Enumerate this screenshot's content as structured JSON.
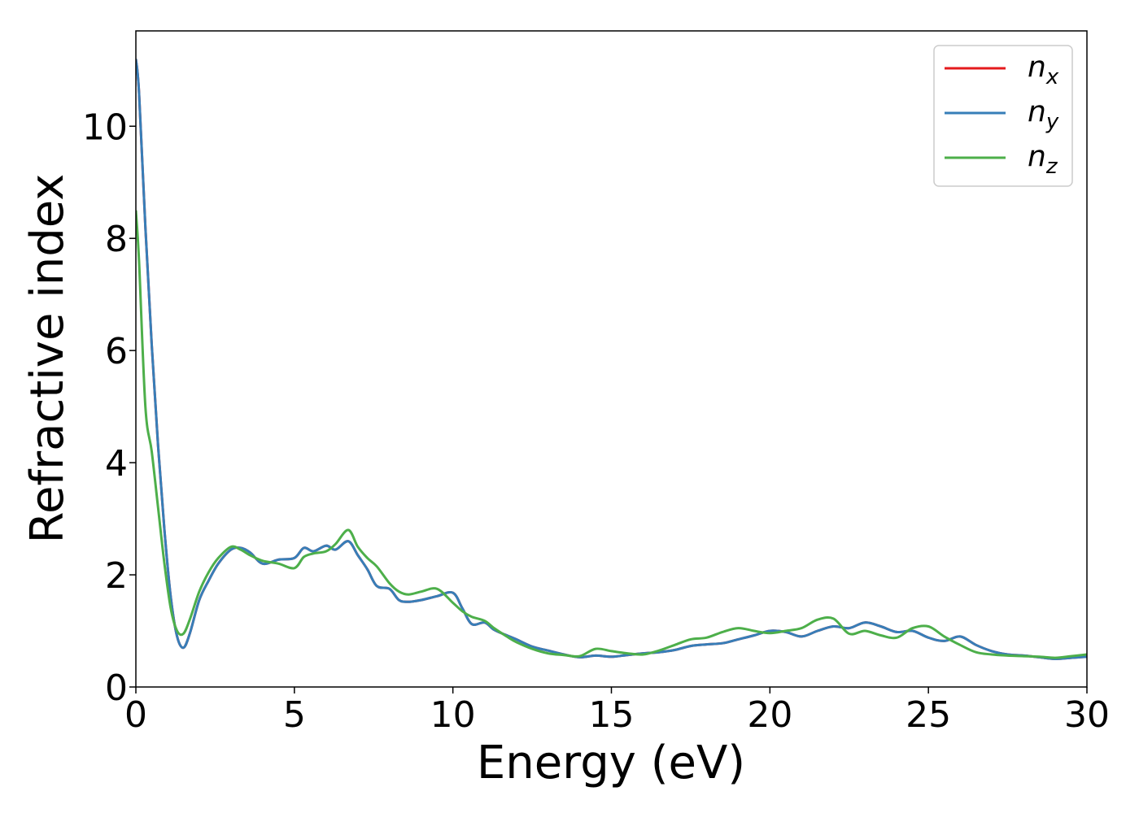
{
  "chart_data": {
    "type": "line",
    "xlabel": "Energy (eV)",
    "ylabel": "Refractive index",
    "xlim": [
      0,
      30
    ],
    "ylim": [
      0,
      11.7
    ],
    "xticks": [
      0,
      5,
      10,
      15,
      20,
      25,
      30
    ],
    "yticks": [
      0,
      2,
      4,
      6,
      8,
      10
    ],
    "grid": false,
    "legend_position": "top-right",
    "series": [
      {
        "name": "n_x",
        "label_base": "n",
        "label_sub": "x",
        "color": "#e41a1c",
        "x": [
          0,
          0.1,
          0.3,
          0.5,
          0.7,
          0.9,
          1.1,
          1.3,
          1.5,
          1.7,
          2.0,
          2.3,
          2.6,
          3.0,
          3.3,
          3.6,
          4.0,
          4.5,
          5.0,
          5.3,
          5.6,
          6.0,
          6.3,
          6.7,
          7.0,
          7.3,
          7.6,
          8.0,
          8.3,
          8.6,
          9.0,
          9.5,
          10.0,
          10.3,
          10.6,
          11.0,
          11.3,
          11.7,
          12.0,
          12.5,
          13.0,
          13.5,
          14.0,
          14.5,
          15.0,
          15.5,
          16.0,
          16.5,
          17.0,
          17.5,
          18.0,
          18.5,
          19.0,
          19.5,
          20.0,
          20.5,
          21.0,
          21.5,
          22.0,
          22.5,
          23.0,
          23.5,
          24.0,
          24.5,
          25.0,
          25.5,
          26.0,
          26.5,
          27.0,
          27.5,
          28.0,
          28.5,
          29.0,
          29.5,
          30.0
        ],
        "y": [
          11.2,
          10.6,
          8.2,
          6.1,
          4.3,
          2.8,
          1.6,
          0.9,
          0.7,
          0.95,
          1.55,
          1.9,
          2.2,
          2.45,
          2.48,
          2.4,
          2.2,
          2.27,
          2.3,
          2.48,
          2.42,
          2.52,
          2.45,
          2.6,
          2.35,
          2.1,
          1.8,
          1.75,
          1.55,
          1.52,
          1.55,
          1.62,
          1.68,
          1.4,
          1.12,
          1.15,
          1.02,
          0.92,
          0.85,
          0.72,
          0.65,
          0.58,
          0.53,
          0.56,
          0.54,
          0.57,
          0.6,
          0.62,
          0.66,
          0.73,
          0.76,
          0.78,
          0.85,
          0.92,
          1.0,
          0.98,
          0.9,
          1.0,
          1.08,
          1.05,
          1.15,
          1.08,
          0.98,
          1.0,
          0.88,
          0.82,
          0.9,
          0.75,
          0.64,
          0.58,
          0.56,
          0.53,
          0.5,
          0.52,
          0.54
        ]
      },
      {
        "name": "n_y",
        "label_base": "n",
        "label_sub": "y",
        "color": "#377eb8",
        "x": [
          0,
          0.1,
          0.3,
          0.5,
          0.7,
          0.9,
          1.1,
          1.3,
          1.5,
          1.7,
          2.0,
          2.3,
          2.6,
          3.0,
          3.3,
          3.6,
          4.0,
          4.5,
          5.0,
          5.3,
          5.6,
          6.0,
          6.3,
          6.7,
          7.0,
          7.3,
          7.6,
          8.0,
          8.3,
          8.6,
          9.0,
          9.5,
          10.0,
          10.3,
          10.6,
          11.0,
          11.3,
          11.7,
          12.0,
          12.5,
          13.0,
          13.5,
          14.0,
          14.5,
          15.0,
          15.5,
          16.0,
          16.5,
          17.0,
          17.5,
          18.0,
          18.5,
          19.0,
          19.5,
          20.0,
          20.5,
          21.0,
          21.5,
          22.0,
          22.5,
          23.0,
          23.5,
          24.0,
          24.5,
          25.0,
          25.5,
          26.0,
          26.5,
          27.0,
          27.5,
          28.0,
          28.5,
          29.0,
          29.5,
          30.0
        ],
        "y": [
          11.2,
          10.6,
          8.2,
          6.1,
          4.3,
          2.8,
          1.6,
          0.9,
          0.7,
          0.95,
          1.55,
          1.9,
          2.2,
          2.45,
          2.48,
          2.4,
          2.2,
          2.27,
          2.3,
          2.48,
          2.42,
          2.52,
          2.45,
          2.6,
          2.35,
          2.1,
          1.8,
          1.75,
          1.55,
          1.52,
          1.55,
          1.62,
          1.68,
          1.4,
          1.12,
          1.15,
          1.02,
          0.92,
          0.85,
          0.72,
          0.65,
          0.58,
          0.53,
          0.56,
          0.54,
          0.57,
          0.6,
          0.62,
          0.66,
          0.73,
          0.76,
          0.78,
          0.85,
          0.92,
          1.0,
          0.98,
          0.9,
          1.0,
          1.08,
          1.05,
          1.15,
          1.08,
          0.98,
          1.0,
          0.88,
          0.82,
          0.9,
          0.75,
          0.64,
          0.58,
          0.56,
          0.53,
          0.5,
          0.52,
          0.54
        ]
      },
      {
        "name": "n_z",
        "label_base": "n",
        "label_sub": "z",
        "color": "#4daf4a",
        "x": [
          0,
          0.1,
          0.3,
          0.5,
          0.7,
          0.9,
          1.1,
          1.3,
          1.5,
          1.7,
          2.0,
          2.3,
          2.6,
          3.0,
          3.3,
          3.6,
          4.0,
          4.5,
          5.0,
          5.3,
          5.6,
          6.0,
          6.3,
          6.7,
          7.0,
          7.3,
          7.6,
          8.0,
          8.3,
          8.6,
          9.0,
          9.5,
          10.0,
          10.3,
          10.6,
          11.0,
          11.3,
          11.7,
          12.0,
          12.5,
          13.0,
          13.5,
          14.0,
          14.5,
          15.0,
          15.5,
          16.0,
          16.5,
          17.0,
          17.5,
          18.0,
          18.5,
          19.0,
          19.5,
          20.0,
          20.5,
          21.0,
          21.5,
          22.0,
          22.5,
          23.0,
          23.5,
          24.0,
          24.5,
          25.0,
          25.5,
          26.0,
          26.5,
          27.0,
          27.5,
          28.0,
          28.5,
          29.0,
          29.5,
          30.0
        ],
        "y": [
          8.5,
          7.6,
          5.0,
          4.2,
          3.2,
          2.2,
          1.4,
          1.0,
          0.95,
          1.2,
          1.7,
          2.05,
          2.3,
          2.5,
          2.45,
          2.35,
          2.25,
          2.2,
          2.12,
          2.32,
          2.38,
          2.42,
          2.55,
          2.8,
          2.5,
          2.3,
          2.15,
          1.85,
          1.7,
          1.65,
          1.7,
          1.75,
          1.5,
          1.35,
          1.25,
          1.18,
          1.05,
          0.9,
          0.8,
          0.68,
          0.6,
          0.57,
          0.55,
          0.68,
          0.64,
          0.6,
          0.58,
          0.65,
          0.75,
          0.85,
          0.88,
          0.98,
          1.05,
          1.0,
          0.96,
          1.0,
          1.05,
          1.2,
          1.22,
          0.95,
          1.0,
          0.92,
          0.88,
          1.05,
          1.08,
          0.9,
          0.75,
          0.62,
          0.58,
          0.56,
          0.55,
          0.54,
          0.52,
          0.55,
          0.58
        ]
      }
    ]
  }
}
